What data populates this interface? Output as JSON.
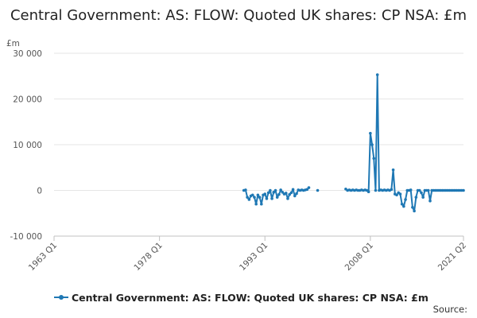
{
  "colors": {
    "series": "#1f78b4",
    "grid": "#e6e6e6",
    "axis": "#c0c0c0",
    "text": "#555555"
  },
  "source_label": "Source:",
  "chart_data": {
    "type": "line",
    "title": "Central Government: AS: FLOW: Quoted UK shares: CP NSA: £m",
    "y_unit": "£m",
    "ylim": [
      -10000,
      30000
    ],
    "y_ticks": [
      -10000,
      0,
      10000,
      20000,
      30000
    ],
    "y_tick_labels": [
      "-10 000",
      "0",
      "10 000",
      "20 000",
      "30 000"
    ],
    "xlim": [
      1963.0,
      2021.25
    ],
    "x_ticks": [
      1963.0,
      1978.0,
      1993.0,
      2008.0,
      2021.25
    ],
    "x_tick_labels": [
      "1963 Q1",
      "1978 Q1",
      "1993 Q1",
      "2008 Q1",
      "2021 Q2"
    ],
    "grid": "horizontal",
    "legend": "bottom",
    "series": [
      {
        "name": "Central Government: AS: FLOW: Quoted UK shares: CP NSA: £m",
        "segments": [
          [
            [
              1990.0,
              0
            ],
            [
              1990.25,
              100
            ],
            [
              1990.5,
              -1500
            ],
            [
              1990.75,
              -2000
            ],
            [
              1991.0,
              -1200
            ],
            [
              1991.25,
              -1000
            ],
            [
              1991.5,
              -1500
            ],
            [
              1991.75,
              -3000
            ],
            [
              1992.0,
              -1000
            ],
            [
              1992.25,
              -1500
            ],
            [
              1992.5,
              -3000
            ],
            [
              1992.75,
              -1000
            ],
            [
              1993.0,
              -800
            ],
            [
              1993.25,
              -1800
            ],
            [
              1993.5,
              -500
            ],
            [
              1993.75,
              0
            ],
            [
              1994.0,
              -1800
            ],
            [
              1994.25,
              -400
            ],
            [
              1994.5,
              0
            ],
            [
              1994.75,
              -1500
            ],
            [
              1995.0,
              -900
            ],
            [
              1995.25,
              100
            ],
            [
              1995.5,
              -400
            ],
            [
              1995.75,
              -800
            ],
            [
              1996.0,
              -600
            ],
            [
              1996.25,
              -1800
            ],
            [
              1996.5,
              -900
            ],
            [
              1996.75,
              -500
            ],
            [
              1997.0,
              200
            ],
            [
              1997.25,
              -1200
            ],
            [
              1997.5,
              -700
            ],
            [
              1997.75,
              100
            ],
            [
              1998.0,
              0
            ],
            [
              1998.25,
              100
            ],
            [
              1998.5,
              0
            ],
            [
              1998.75,
              100
            ],
            [
              1999.0,
              200
            ],
            [
              1999.25,
              600
            ]
          ],
          [
            [
              2000.5,
              0
            ]
          ],
          [
            [
              2004.5,
              300
            ],
            [
              2004.75,
              0
            ],
            [
              2005.0,
              100
            ],
            [
              2005.25,
              0
            ],
            [
              2005.5,
              100
            ],
            [
              2005.75,
              0
            ],
            [
              2006.0,
              100
            ],
            [
              2006.25,
              0
            ],
            [
              2006.5,
              0
            ],
            [
              2006.75,
              100
            ],
            [
              2007.0,
              0
            ],
            [
              2007.25,
              100
            ],
            [
              2007.5,
              0
            ],
            [
              2007.75,
              -300
            ],
            [
              2008.0,
              12500
            ],
            [
              2008.25,
              10000
            ],
            [
              2008.5,
              7000
            ],
            [
              2008.75,
              0
            ],
            [
              2009.0,
              25300
            ],
            [
              2009.25,
              0
            ],
            [
              2009.5,
              100
            ],
            [
              2009.75,
              0
            ],
            [
              2010.0,
              100
            ],
            [
              2010.25,
              0
            ],
            [
              2010.5,
              100
            ],
            [
              2010.75,
              0
            ],
            [
              2011.0,
              200
            ],
            [
              2011.25,
              4500
            ],
            [
              2011.5,
              -800
            ],
            [
              2011.75,
              -1000
            ],
            [
              2012.0,
              -500
            ],
            [
              2012.25,
              -800
            ],
            [
              2012.5,
              -3000
            ],
            [
              2012.75,
              -3500
            ],
            [
              2013.0,
              -2000
            ],
            [
              2013.25,
              0
            ],
            [
              2013.5,
              0
            ],
            [
              2013.75,
              100
            ],
            [
              2014.0,
              -3700
            ],
            [
              2014.25,
              -4500
            ],
            [
              2014.5,
              -1500
            ],
            [
              2014.75,
              0
            ],
            [
              2015.0,
              0
            ],
            [
              2015.25,
              -500
            ],
            [
              2015.5,
              -1500
            ],
            [
              2015.75,
              0
            ],
            [
              2016.0,
              0
            ],
            [
              2016.25,
              0
            ],
            [
              2016.5,
              -2300
            ],
            [
              2016.75,
              0
            ],
            [
              2017.0,
              0
            ],
            [
              2017.25,
              0
            ],
            [
              2017.5,
              0
            ],
            [
              2017.75,
              0
            ],
            [
              2018.0,
              0
            ],
            [
              2018.25,
              0
            ],
            [
              2018.5,
              0
            ],
            [
              2018.75,
              0
            ],
            [
              2019.0,
              0
            ],
            [
              2019.25,
              0
            ],
            [
              2019.5,
              0
            ],
            [
              2019.75,
              0
            ],
            [
              2020.0,
              0
            ],
            [
              2020.25,
              0
            ],
            [
              2020.5,
              0
            ],
            [
              2020.75,
              0
            ],
            [
              2021.0,
              0
            ],
            [
              2021.25,
              0
            ]
          ]
        ]
      }
    ]
  }
}
